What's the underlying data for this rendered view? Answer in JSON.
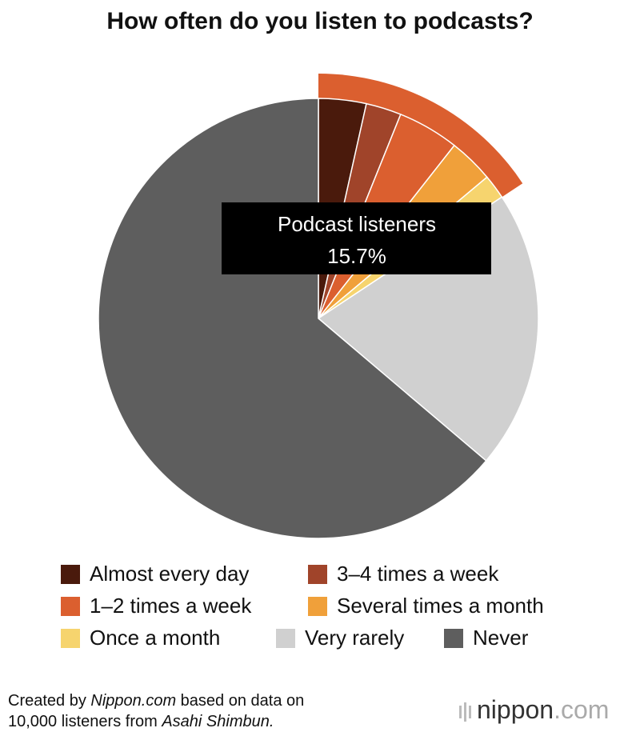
{
  "chart_data": {
    "type": "pie",
    "title": "How often do you listen to podcasts?",
    "categories": [
      "Almost every day",
      "3–4 times a week",
      "1–2 times a week",
      "Several times a month",
      "Once a month",
      "Very rarely",
      "Never"
    ],
    "values": [
      3.5,
      2.6,
      4.5,
      3.3,
      1.8,
      20.5,
      63.8
    ],
    "colors": [
      "#4a1a0c",
      "#a0442a",
      "#db5f2f",
      "#f0a03a",
      "#f6d46e",
      "#d0d0d0",
      "#5e5e5e"
    ],
    "annotation": {
      "label": "Podcast listeners",
      "value": 15.7,
      "value_label": "15.7%",
      "color": "#db5f2f"
    },
    "source": [
      "Created by ",
      "Nippon.com",
      " based on data on",
      "10,000 listeners from ",
      "Asahi Shimbun."
    ],
    "logo": [
      "nippon",
      ".com"
    ]
  }
}
